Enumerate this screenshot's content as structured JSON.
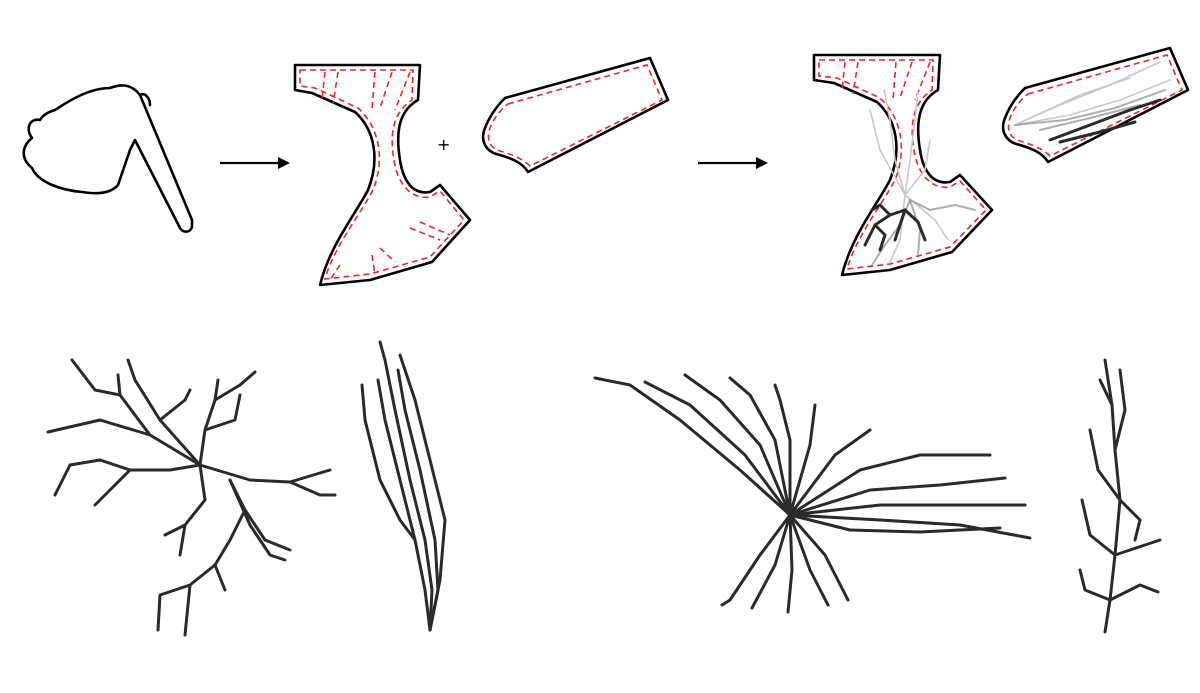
{
  "figure": {
    "description_labels": {
      "plus_sign": "+"
    },
    "colors": {
      "outline": "#000000",
      "dashed_partition": "#e8262a",
      "dendrite_dark": "#2a2a2a",
      "dendrite_gray": "#9a9a9a"
    },
    "steps": [
      {
        "name": "input-shape",
        "icon": "irregular-polygon-shape"
      },
      {
        "name": "arrow-1",
        "icon": "right-arrow-icon"
      },
      {
        "name": "partitioned-pieces",
        "icon": "dashed-partition-shape"
      },
      {
        "name": "arrow-2",
        "icon": "right-arrow-icon"
      },
      {
        "name": "grown-pieces",
        "icon": "dendrite-filled-shape"
      }
    ],
    "bottom_row": [
      "stellate-neuron",
      "bipolar-neuron",
      "radial-neuron",
      "pyramidal-neuron"
    ]
  }
}
